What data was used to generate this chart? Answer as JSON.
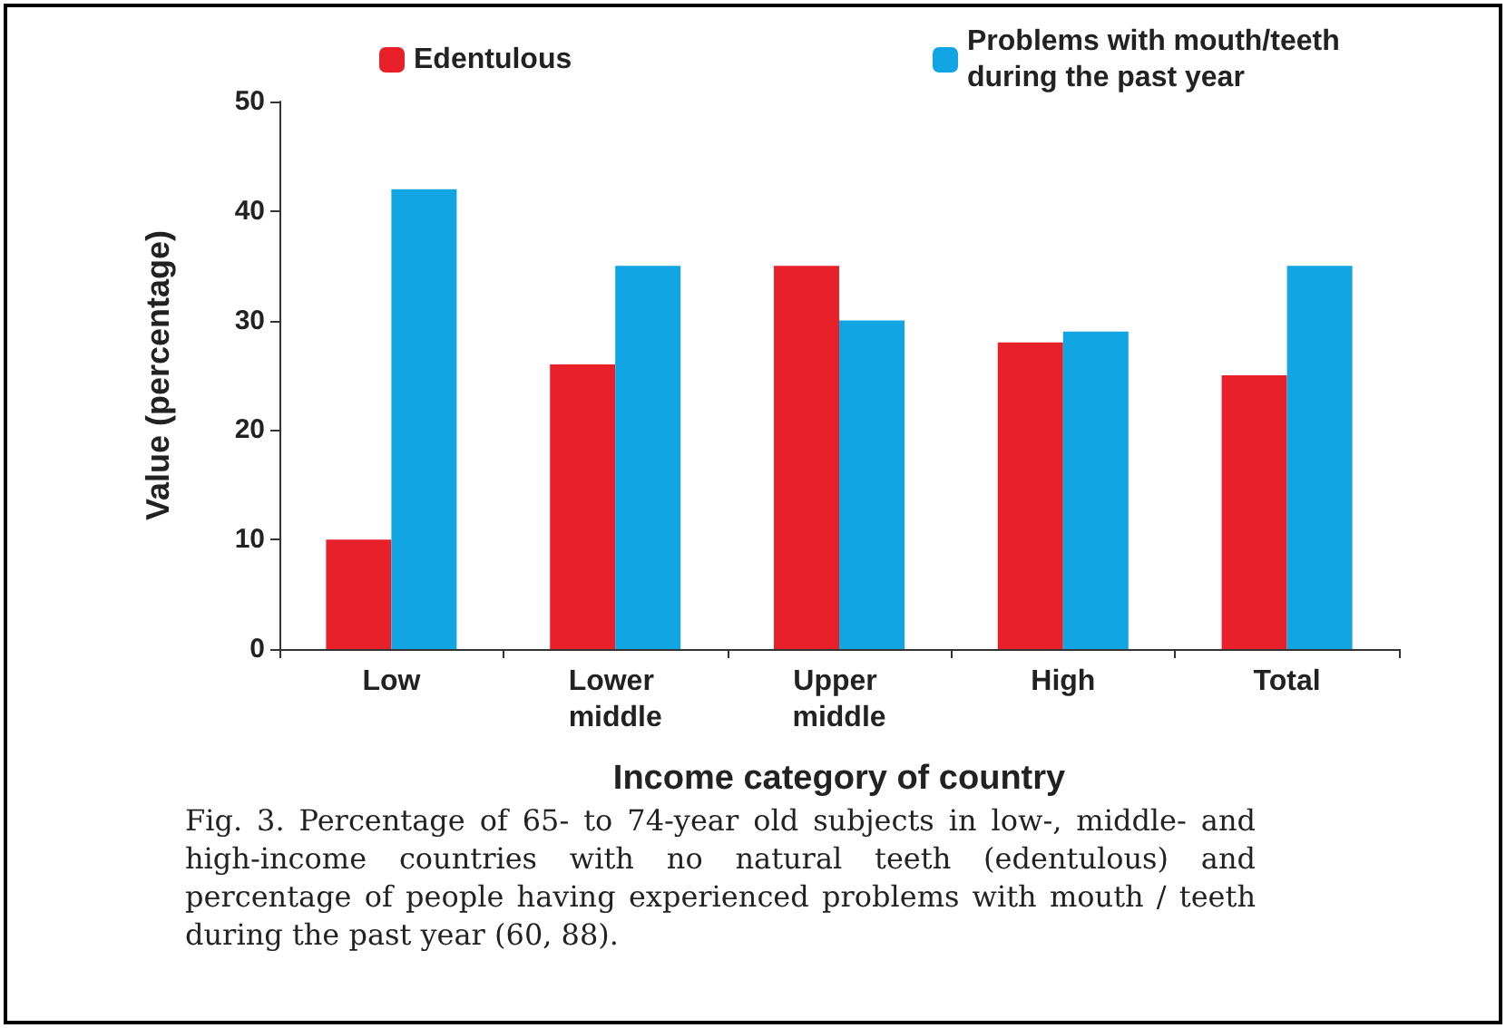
{
  "chart_data": {
    "type": "bar",
    "xlabel": "Income category of country",
    "ylabel": "Value (percentage)",
    "categories": [
      "Low",
      "Lower middle",
      "Upper middle",
      "High",
      "Total"
    ],
    "series": [
      {
        "name": "Edentulous",
        "color": "#e8202a",
        "values": [
          10,
          26,
          35,
          28,
          25
        ]
      },
      {
        "name": "Problems with mouth/teeth during the past year",
        "color": "#12a5e3",
        "values": [
          42,
          35,
          30,
          29,
          35
        ]
      }
    ],
    "ylim": [
      0,
      50
    ],
    "yticks": [
      0,
      10,
      20,
      30,
      40,
      50
    ],
    "grid": false,
    "legend": "top",
    "annotations": [
      "Fig. 3. Percentage of 65- to 74-year old subjects in low-, middle- and high-income countries with no natural teeth (edentulous) and percentage of people having experienced problems with mouth / teeth during the past year (60, 88)."
    ]
  }
}
